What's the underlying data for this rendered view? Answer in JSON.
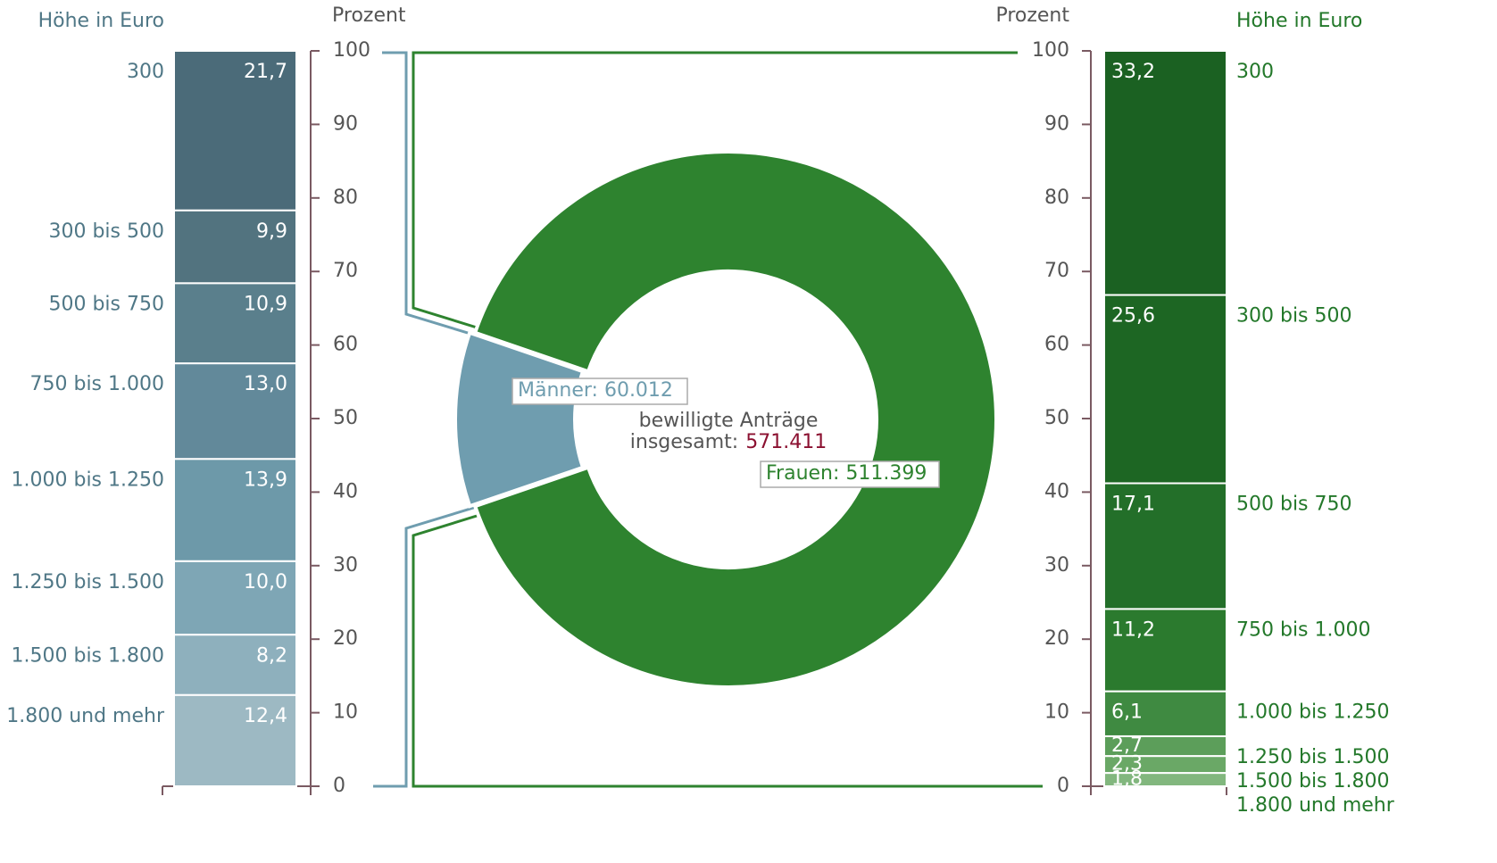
{
  "chart_data": [
    {
      "type": "stacked_bar",
      "category_title": "Höhe in Euro",
      "axis_title": "Prozent",
      "categories": [
        "300",
        "300 bis 500",
        "500 bis 750",
        "750 bis 1.000",
        "1.000 bis 1.250",
        "1.250 bis 1.500",
        "1.500 bis 1.800",
        "1.800 und mehr"
      ],
      "values": [
        21.7,
        9.9,
        10.9,
        13.0,
        13.9,
        10.0,
        8.2,
        12.4
      ],
      "value_labels": [
        "21,7",
        "9,9",
        "10,9",
        "13,0",
        "13,9",
        "10,0",
        "8,2",
        "12,4"
      ],
      "colors": [
        "#4b6b79",
        "#52737f",
        "#5a7f8c",
        "#62899a",
        "#6d99a9",
        "#7ea6b5",
        "#8eb0bd",
        "#9db9c3"
      ],
      "text_color": "#4f7786",
      "ylim": [
        0,
        100
      ],
      "yticks": [
        0,
        10,
        20,
        30,
        40,
        50,
        60,
        70,
        80,
        90,
        100
      ]
    },
    {
      "type": "donut",
      "value_labels": [
        "Männer: 60.012",
        "Frauen: 511.399"
      ],
      "values": [
        60012,
        511399
      ],
      "colors": [
        "#6f9daf",
        "#2e832f"
      ],
      "center_label": [
        "bewilligte Anträge",
        "insgesamt:"
      ],
      "total": 571411,
      "total_label": "571.411",
      "total_color": "#8b1030"
    },
    {
      "type": "stacked_bar",
      "category_title": "Höhe in Euro",
      "axis_title": "Prozent",
      "categories": [
        "300",
        "300 bis 500",
        "500 bis 750",
        "750 bis 1.000",
        "1.000 bis 1.250",
        "1.250 bis 1.500",
        "1.500 bis 1.800",
        "1.800 und mehr"
      ],
      "values": [
        33.2,
        25.6,
        17.1,
        11.2,
        6.1,
        2.7,
        2.3,
        1.8
      ],
      "value_labels": [
        "33,2",
        "25,6",
        "17,1",
        "11,2",
        "6,1",
        "2,7",
        "2,3",
        "1,8"
      ],
      "colors": [
        "#1b6122",
        "#1d6623",
        "#236f29",
        "#2b7a2e",
        "#3f8a41",
        "#5c9e5a",
        "#6aa866",
        "#82b77e"
      ],
      "text_color": "#23782a",
      "ylim": [
        0,
        100
      ],
      "yticks": [
        0,
        10,
        20,
        30,
        40,
        50,
        60,
        70,
        80,
        90,
        100
      ]
    }
  ]
}
